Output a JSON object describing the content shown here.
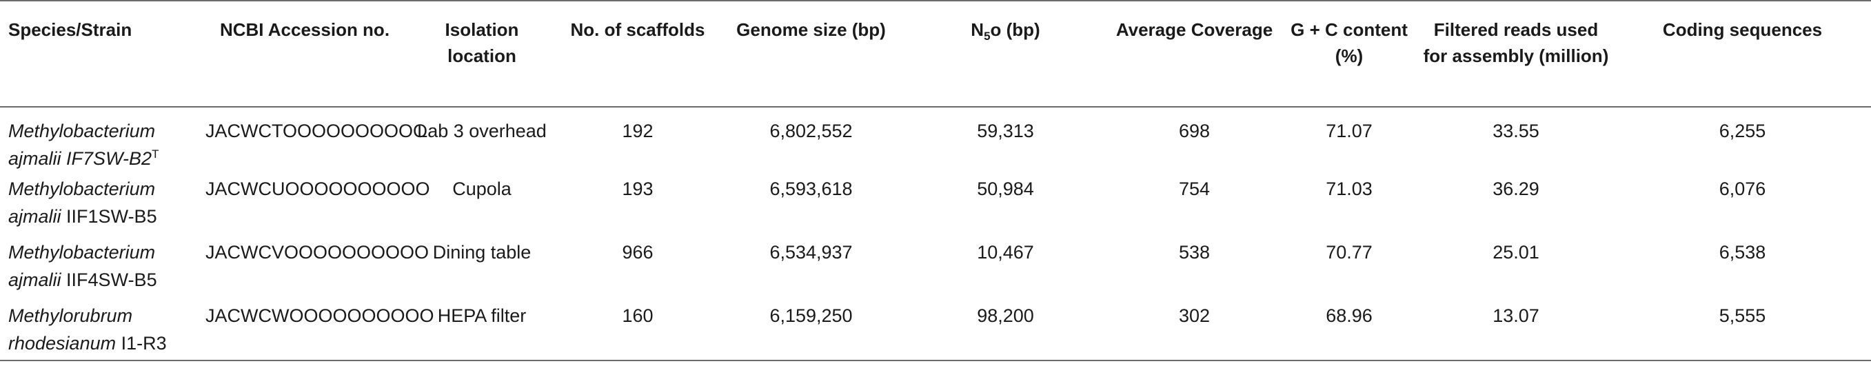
{
  "headers": {
    "species": "Species/Strain",
    "accession": "NCBI Accession no.",
    "location": "Isolation location",
    "scaffolds": "No. of scaffolds",
    "genome_size": "Genome size (bp)",
    "n50_main": "N",
    "n50_sub": "5",
    "n50_rest": "o (bp)",
    "coverage": "Average Coverage",
    "gc": "G + C content (%)",
    "reads": "Filtered reads used for assembly (million)",
    "cds": "Coding sequences"
  },
  "rows": [
    {
      "genus": "Methylobacterium",
      "species": "ajmalii",
      "strain": "IF7SW-B2",
      "strain_italic": true,
      "strain_sup": "T",
      "accession": "JACWCTOOOOOOOOOO",
      "location": "Lab 3 overhead",
      "scaffolds": "192",
      "genome_size": "6,802,552",
      "n50": "59,313",
      "coverage": "698",
      "gc": "71.07",
      "reads": "33.55",
      "cds": "6,255"
    },
    {
      "genus": "Methylobacterium",
      "species": "ajmalii",
      "strain": "IIF1SW-B5",
      "strain_italic": false,
      "strain_sup": "",
      "accession": "JACWCUOOOOOOOOOO",
      "location": "Cupola",
      "scaffolds": "193",
      "genome_size": "6,593,618",
      "n50": "50,984",
      "coverage": "754",
      "gc": "71.03",
      "reads": "36.29",
      "cds": "6,076"
    },
    {
      "genus": "Methylobacterium",
      "species": "ajmalii",
      "strain": "IIF4SW-B5",
      "strain_italic": false,
      "strain_sup": "",
      "accession": "JACWCVOOOOOOOOOO",
      "location": "Dining table",
      "scaffolds": "966",
      "genome_size": "6,534,937",
      "n50": "10,467",
      "coverage": "538",
      "gc": "70.77",
      "reads": "25.01",
      "cds": "6,538"
    },
    {
      "genus": "Methylorubrum",
      "species": "rhodesianum",
      "strain": "I1-R3",
      "strain_italic": false,
      "strain_sup": "",
      "accession": "JACWCWOOOOOOOOOO",
      "location": "HEPA filter",
      "scaffolds": "160",
      "genome_size": "6,159,250",
      "n50": "98,200",
      "coverage": "302",
      "gc": "68.96",
      "reads": "13.07",
      "cds": "5,555"
    }
  ]
}
